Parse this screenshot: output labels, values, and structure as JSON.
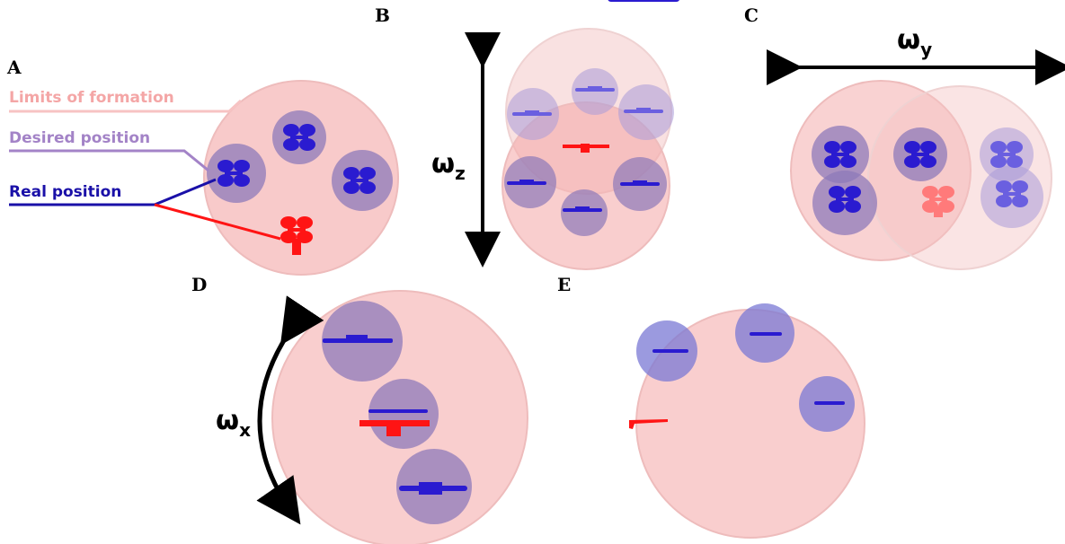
{
  "panels": {
    "a": "A",
    "b": "B",
    "c": "C",
    "d": "D",
    "e": "E"
  },
  "legend": {
    "limits": "Limits of formation",
    "desired": "Desired position",
    "real": "Real position"
  },
  "rotations": {
    "z": {
      "symbol": "ω",
      "sub": "z"
    },
    "y": {
      "symbol": "ω",
      "sub": "y"
    },
    "x": {
      "symbol": "ω",
      "sub": "x"
    }
  },
  "colors": {
    "formation": "#f4a6a6",
    "desired": "#9b79c8",
    "real": "#2a1bd0",
    "leader": "#ff1414",
    "legend_limits": "#f7c3c3",
    "legend_desired": "#a383c7",
    "legend_real": "#1a10a8"
  }
}
